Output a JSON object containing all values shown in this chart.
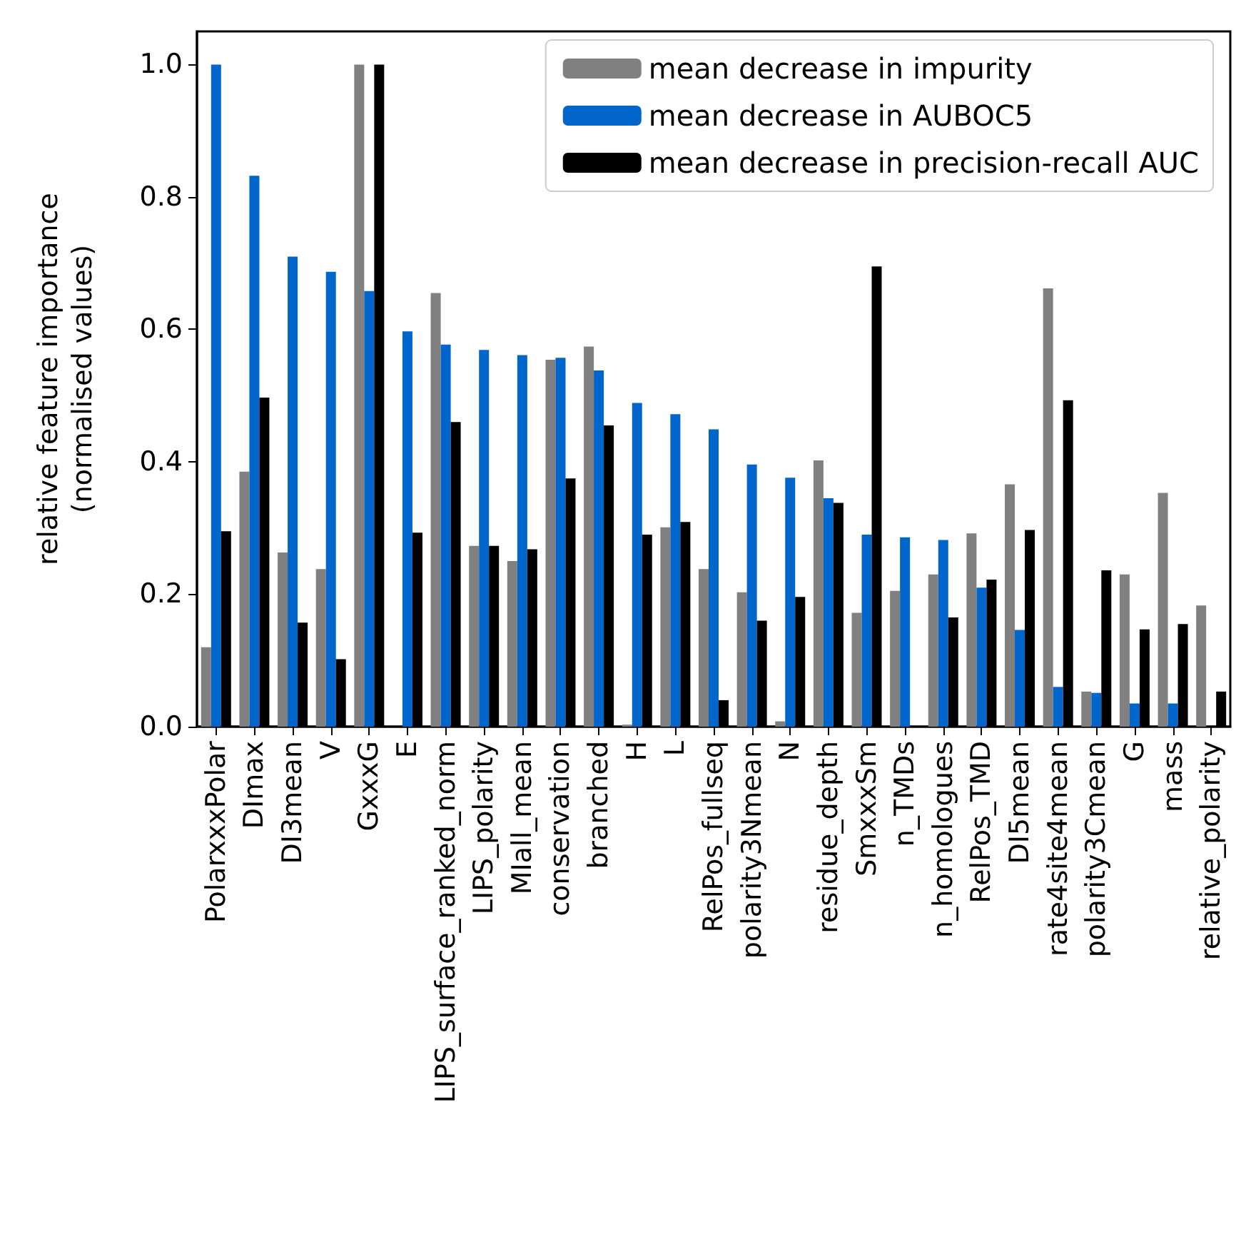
{
  "chart_data": {
    "type": "bar",
    "ylabel": "relative feature importance\n(normalised values)",
    "categories": [
      "PolarxxxPolar",
      "DImax",
      "DI3mean",
      "V",
      "GxxxG",
      "E",
      "LIPS_surface_ranked_norm",
      "LIPS_polarity",
      "MIall_mean",
      "conservation",
      "branched",
      "H",
      "L",
      "RelPos_fullseq",
      "polarity3Nmean",
      "N",
      "residue_depth",
      "SmxxxSm",
      "n_TMDs",
      "n_homologues",
      "RelPos_TMD",
      "DI5mean",
      "rate4site4mean",
      "polarity3Cmean",
      "G",
      "mass",
      "relative_polarity"
    ],
    "series": [
      {
        "name": "mean decrease in impurity",
        "color": "#808080",
        "values": [
          0.12,
          0.385,
          0.263,
          0.238,
          1.0,
          0,
          0.655,
          0.273,
          0.25,
          0.554,
          0.574,
          0.003,
          0.301,
          0.238,
          0.203,
          0.008,
          0.402,
          0.172,
          0.205,
          0.23,
          0.292,
          0.366,
          0.662,
          0.053,
          0.23,
          0.353,
          0.183
        ]
      },
      {
        "name": "mean decrease in AUBOC5",
        "color": "#0066cc",
        "values": [
          1.0,
          0.832,
          0.71,
          0.687,
          0.658,
          0.597,
          0.577,
          0.569,
          0.561,
          0.557,
          0.538,
          0.489,
          0.472,
          0.449,
          0.396,
          0.376,
          0.345,
          0.29,
          0.286,
          0.282,
          0.21,
          0.146,
          0.06,
          0.051,
          0.035,
          0.035,
          0
        ]
      },
      {
        "name": "mean decrease in precision-recall AUC",
        "color": "#000000",
        "values": [
          0.295,
          0.497,
          0.157,
          0.102,
          1.0,
          0.293,
          0.46,
          0.273,
          0.268,
          0.375,
          0.455,
          0.29,
          0.309,
          0.04,
          0.16,
          0.196,
          0.338,
          0.695,
          0,
          0.165,
          0.222,
          0.297,
          0.493,
          0.236,
          0.147,
          0.155,
          0.053
        ]
      }
    ],
    "ylim": [
      0,
      1.05
    ],
    "yticks": [
      {
        "value": 0,
        "label": "0.0"
      },
      {
        "value": 0.2,
        "label": "0.2"
      },
      {
        "value": 0.4,
        "label": "0.4"
      },
      {
        "value": 0.6,
        "label": "0.6"
      },
      {
        "value": 0.8,
        "label": "0.8"
      },
      {
        "value": 1,
        "label": "1.0"
      }
    ],
    "grid": false,
    "legend": "top right"
  }
}
